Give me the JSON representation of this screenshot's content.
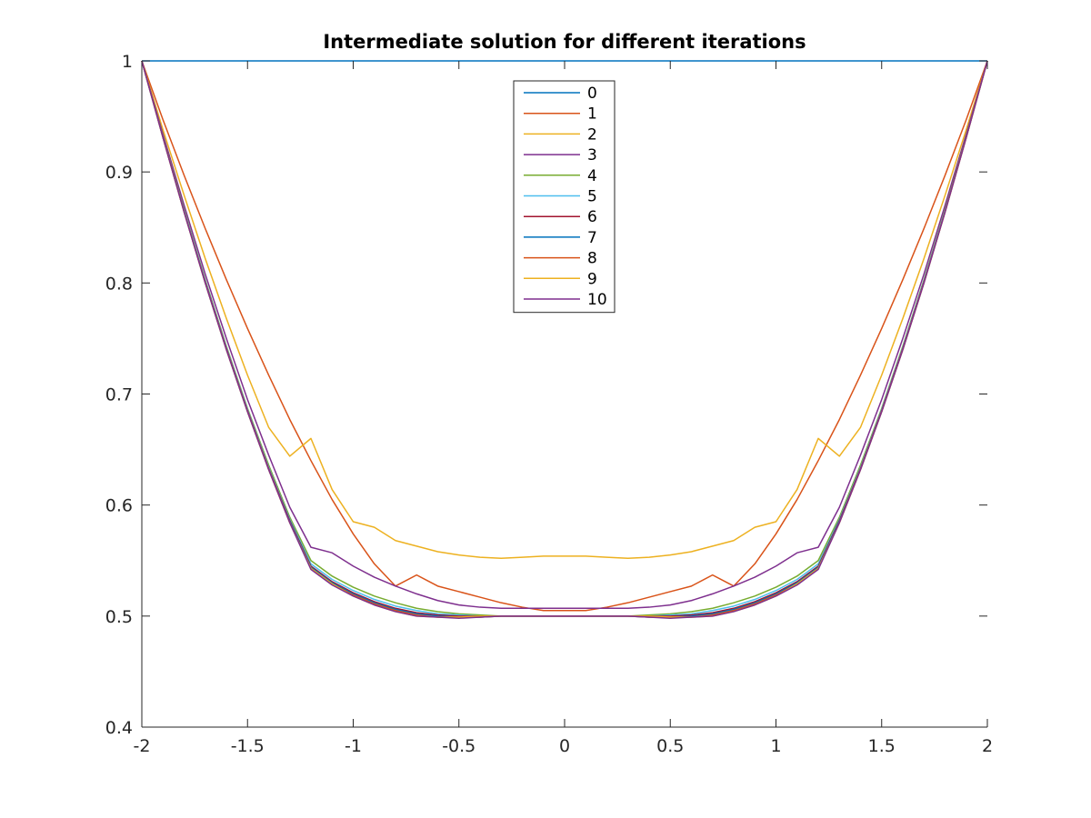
{
  "chart_data": {
    "type": "line",
    "title": "Intermediate solution for different iterations",
    "xlabel": "",
    "ylabel": "",
    "xlim": [
      -2,
      2
    ],
    "ylim": [
      0.4,
      1
    ],
    "xticks": [
      "-2",
      "-1.5",
      "-1",
      "-0.5",
      "0",
      "0.5",
      "1",
      "1.5",
      "2"
    ],
    "yticks": [
      "0.4",
      "0.5",
      "0.6",
      "0.7",
      "0.8",
      "0.9",
      "1"
    ],
    "grid": false,
    "legend_position": "top-center",
    "x": [
      -2,
      -1.9,
      -1.8,
      -1.7,
      -1.6,
      -1.5,
      -1.4,
      -1.3,
      -1.2,
      -1.1,
      -1.0,
      -0.9,
      -0.8,
      -0.7,
      -0.6,
      -0.5,
      -0.4,
      -0.3,
      -0.2,
      -0.1,
      0,
      0.1,
      0.2,
      0.3,
      0.4,
      0.5,
      0.6,
      0.7,
      0.8,
      0.9,
      1.0,
      1.1,
      1.2,
      1.3,
      1.4,
      1.5,
      1.6,
      1.7,
      1.8,
      1.9,
      2
    ],
    "series": [
      {
        "name": "0",
        "color": "#0072BD",
        "values": [
          1,
          1,
          1,
          1,
          1,
          1,
          1,
          1,
          1,
          1,
          1,
          1,
          1,
          1,
          1,
          1,
          1,
          1,
          1,
          1,
          1,
          1,
          1,
          1,
          1,
          1,
          1,
          1,
          1,
          1,
          1,
          1,
          1,
          1,
          1,
          1,
          1,
          1,
          1,
          1,
          1
        ]
      },
      {
        "name": "1",
        "color": "#D95319",
        "values": [
          1,
          0.947,
          0.897,
          0.849,
          0.803,
          0.759,
          0.717,
          0.677,
          0.64,
          0.605,
          0.574,
          0.547,
          0.527,
          0.537,
          0.527,
          0.522,
          0.517,
          0.512,
          0.508,
          0.505,
          0.505,
          0.505,
          0.508,
          0.512,
          0.517,
          0.522,
          0.527,
          0.537,
          0.527,
          0.547,
          0.574,
          0.605,
          0.64,
          0.677,
          0.717,
          0.759,
          0.803,
          0.849,
          0.897,
          0.947,
          1
        ]
      },
      {
        "name": "2",
        "color": "#EDB120",
        "values": [
          1,
          0.938,
          0.879,
          0.822,
          0.768,
          0.717,
          0.67,
          0.644,
          0.66,
          0.614,
          0.585,
          0.58,
          0.568,
          0.563,
          0.558,
          0.555,
          0.553,
          0.552,
          0.553,
          0.554,
          0.554,
          0.554,
          0.553,
          0.552,
          0.553,
          0.555,
          0.558,
          0.563,
          0.568,
          0.58,
          0.585,
          0.614,
          0.66,
          0.644,
          0.67,
          0.717,
          0.768,
          0.822,
          0.879,
          0.938,
          1
        ]
      },
      {
        "name": "3",
        "color": "#7E2F8E",
        "values": [
          1,
          0.934,
          0.87,
          0.808,
          0.75,
          0.695,
          0.645,
          0.598,
          0.562,
          0.557,
          0.545,
          0.535,
          0.527,
          0.52,
          0.514,
          0.51,
          0.508,
          0.507,
          0.507,
          0.507,
          0.507,
          0.507,
          0.507,
          0.507,
          0.508,
          0.51,
          0.514,
          0.52,
          0.527,
          0.535,
          0.545,
          0.557,
          0.562,
          0.598,
          0.645,
          0.695,
          0.75,
          0.808,
          0.87,
          0.934,
          1
        ]
      },
      {
        "name": "4",
        "color": "#77AC30",
        "values": [
          1,
          0.932,
          0.866,
          0.803,
          0.743,
          0.687,
          0.636,
          0.589,
          0.55,
          0.536,
          0.526,
          0.518,
          0.512,
          0.507,
          0.504,
          0.502,
          0.501,
          0.5,
          0.5,
          0.5,
          0.5,
          0.5,
          0.5,
          0.5,
          0.501,
          0.502,
          0.504,
          0.507,
          0.512,
          0.518,
          0.526,
          0.536,
          0.55,
          0.589,
          0.636,
          0.687,
          0.743,
          0.803,
          0.866,
          0.932,
          1
        ]
      },
      {
        "name": "5",
        "color": "#4DBEEE",
        "values": [
          1,
          0.931,
          0.865,
          0.802,
          0.742,
          0.686,
          0.634,
          0.587,
          0.547,
          0.533,
          0.523,
          0.515,
          0.509,
          0.505,
          0.502,
          0.501,
          0.5,
          0.5,
          0.5,
          0.5,
          0.5,
          0.5,
          0.5,
          0.5,
          0.5,
          0.501,
          0.502,
          0.505,
          0.509,
          0.515,
          0.523,
          0.533,
          0.547,
          0.587,
          0.634,
          0.686,
          0.742,
          0.802,
          0.865,
          0.931,
          1
        ]
      },
      {
        "name": "6",
        "color": "#A2142F",
        "values": [
          1,
          0.931,
          0.864,
          0.801,
          0.741,
          0.685,
          0.633,
          0.586,
          0.545,
          0.531,
          0.521,
          0.513,
          0.507,
          0.503,
          0.501,
          0.5,
          0.5,
          0.5,
          0.5,
          0.5,
          0.5,
          0.5,
          0.5,
          0.5,
          0.5,
          0.5,
          0.501,
          0.503,
          0.507,
          0.513,
          0.521,
          0.531,
          0.545,
          0.586,
          0.633,
          0.685,
          0.741,
          0.801,
          0.864,
          0.931,
          1
        ]
      },
      {
        "name": "7",
        "color": "#0072BD",
        "values": [
          1,
          0.931,
          0.864,
          0.8,
          0.74,
          0.684,
          0.632,
          0.585,
          0.544,
          0.53,
          0.52,
          0.512,
          0.506,
          0.502,
          0.5,
          0.499,
          0.499,
          0.5,
          0.5,
          0.5,
          0.5,
          0.5,
          0.5,
          0.5,
          0.499,
          0.499,
          0.5,
          0.502,
          0.506,
          0.512,
          0.52,
          0.53,
          0.544,
          0.585,
          0.632,
          0.684,
          0.74,
          0.8,
          0.864,
          0.931,
          1
        ]
      },
      {
        "name": "8",
        "color": "#D95319",
        "values": [
          1,
          0.931,
          0.864,
          0.8,
          0.74,
          0.684,
          0.632,
          0.584,
          0.543,
          0.529,
          0.519,
          0.511,
          0.505,
          0.501,
          0.499,
          0.499,
          0.499,
          0.5,
          0.5,
          0.5,
          0.5,
          0.5,
          0.5,
          0.5,
          0.499,
          0.499,
          0.499,
          0.501,
          0.505,
          0.511,
          0.519,
          0.529,
          0.543,
          0.584,
          0.632,
          0.684,
          0.74,
          0.8,
          0.864,
          0.931,
          1
        ]
      },
      {
        "name": "9",
        "color": "#EDB120",
        "values": [
          1,
          0.931,
          0.864,
          0.8,
          0.74,
          0.684,
          0.632,
          0.584,
          0.543,
          0.529,
          0.518,
          0.51,
          0.504,
          0.5,
          0.499,
          0.499,
          0.5,
          0.5,
          0.5,
          0.5,
          0.5,
          0.5,
          0.5,
          0.5,
          0.5,
          0.499,
          0.499,
          0.5,
          0.504,
          0.51,
          0.518,
          0.529,
          0.543,
          0.584,
          0.632,
          0.684,
          0.74,
          0.8,
          0.864,
          0.931,
          1
        ]
      },
      {
        "name": "10",
        "color": "#7E2F8E",
        "values": [
          1,
          0.931,
          0.864,
          0.8,
          0.74,
          0.684,
          0.632,
          0.584,
          0.542,
          0.528,
          0.518,
          0.51,
          0.504,
          0.5,
          0.499,
          0.498,
          0.499,
          0.5,
          0.5,
          0.5,
          0.5,
          0.5,
          0.5,
          0.5,
          0.499,
          0.498,
          0.499,
          0.5,
          0.504,
          0.51,
          0.518,
          0.528,
          0.542,
          0.584,
          0.632,
          0.684,
          0.74,
          0.8,
          0.864,
          0.931,
          1
        ]
      }
    ]
  }
}
